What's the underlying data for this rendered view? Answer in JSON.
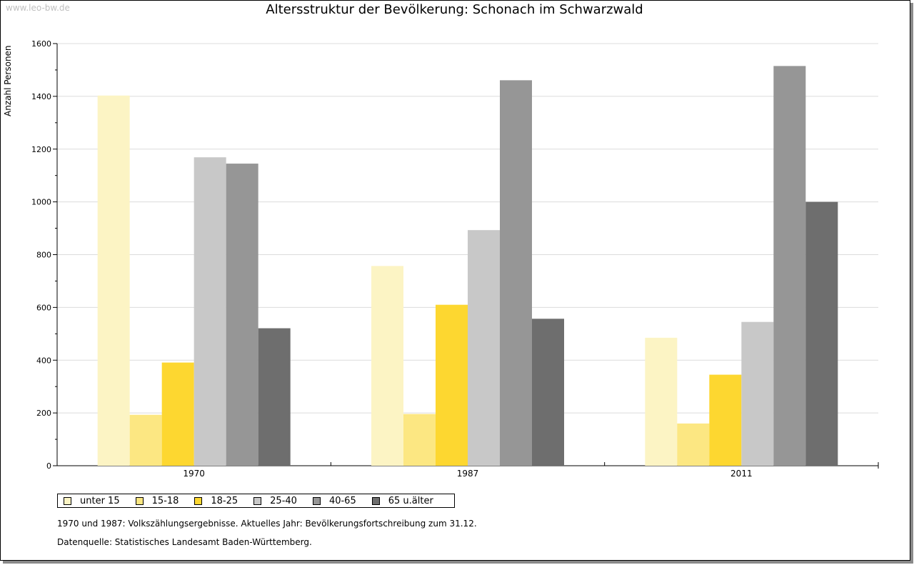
{
  "watermark": "www.leo-bw.de",
  "footnote": "1970 und 1987: Volkszählungsergebnisse. Aktuelles Jahr: Bevölkerungsfortschreibung zum 31.12.",
  "source": "Datenquelle: Statistisches Landesamt Baden-Württemberg.",
  "chart_data": {
    "type": "bar",
    "title": "Altersstruktur der Bevölkerung: Schonach im Schwarzwald",
    "xlabel": "",
    "ylabel": "Anzahl Personen",
    "ylim": [
      0,
      1600
    ],
    "yticks": [
      0,
      200,
      400,
      600,
      800,
      1000,
      1200,
      1400,
      1600
    ],
    "grid": true,
    "legend_position": "bottom-left",
    "categories": [
      "1970",
      "1987",
      "2011"
    ],
    "series": [
      {
        "name": "unter 15",
        "color": "#fcf4c4",
        "values": [
          1403,
          757,
          485
        ]
      },
      {
        "name": "15-18",
        "color": "#fce782",
        "values": [
          193,
          196,
          160
        ]
      },
      {
        "name": "18-25",
        "color": "#fdd730",
        "values": [
          391,
          610,
          345
        ]
      },
      {
        "name": "25-40",
        "color": "#c8c8c8",
        "values": [
          1169,
          893,
          545
        ]
      },
      {
        "name": "40-65",
        "color": "#969696",
        "values": [
          1145,
          1461,
          1515
        ]
      },
      {
        "name": "65 u.älter",
        "color": "#6e6e6e",
        "values": [
          521,
          557,
          1000
        ]
      }
    ]
  }
}
